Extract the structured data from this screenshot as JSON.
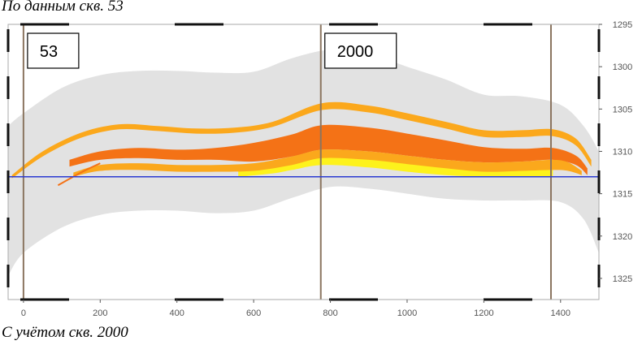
{
  "captions": {
    "top": "По данным скв. 53",
    "bottom": "С учётом скв. 2000"
  },
  "chart_data": {
    "type": "area",
    "xlabel": "",
    "ylabel": "",
    "xlim": [
      -40,
      1500
    ],
    "ylim": [
      1295,
      1327.5
    ],
    "y_inverted": true,
    "y_axis_side": "right",
    "x_ticks": [
      0,
      200,
      400,
      600,
      800,
      1000,
      1200,
      1400
    ],
    "y_ticks": [
      1295,
      1300,
      1305,
      1310,
      1315,
      1320,
      1325
    ],
    "wells": [
      {
        "name": "53",
        "x": 0
      },
      {
        "name": "2000",
        "x": 775
      },
      {
        "name": "",
        "x": 1375
      }
    ],
    "horizontal_line": {
      "y": 1313,
      "color": "#2b3bd1"
    },
    "colors": {
      "envelope": "#e2e2e2",
      "orange_dark": "#f47216",
      "orange_light": "#fba81c",
      "yellow": "#fdf21c",
      "well_line": "#8b7560",
      "frame": "#aaaaaa"
    },
    "series": [
      {
        "key": "envelope_top",
        "x": [
          -40,
          0,
          100,
          200,
          300,
          400,
          500,
          600,
          700,
          800,
          900,
          1000,
          1100,
          1200,
          1300,
          1400,
          1460,
          1500
        ],
        "y": [
          1307,
          1305.5,
          1302.5,
          1301,
          1300.5,
          1300.5,
          1300.7,
          1300.6,
          1299,
          1298,
          1298.5,
          1300,
          1301.5,
          1303.3,
          1303.5,
          1304.5,
          1307,
          1310
        ]
      },
      {
        "key": "envelope_bottom",
        "x": [
          -40,
          0,
          100,
          200,
          300,
          400,
          500,
          600,
          700,
          800,
          900,
          1000,
          1100,
          1200,
          1300,
          1400,
          1460,
          1500
        ],
        "y": [
          1324.7,
          1322,
          1319,
          1317.5,
          1317,
          1317,
          1317.3,
          1317,
          1315.5,
          1314.2,
          1314.4,
          1315,
          1315.6,
          1315.8,
          1315.8,
          1316,
          1318,
          1322
        ]
      },
      {
        "key": "layer1_top",
        "x": [
          -30,
          50,
          150,
          250,
          350,
          450,
          550,
          650,
          780,
          900,
          1000,
          1100,
          1200,
          1300,
          1380,
          1440,
          1480
        ],
        "y": [
          1312.8,
          1310,
          1307.8,
          1306.8,
          1307,
          1307.3,
          1307.2,
          1306.5,
          1304.3,
          1304.6,
          1305.5,
          1306.5,
          1307.5,
          1307.5,
          1307.4,
          1308.5,
          1311
        ]
      },
      {
        "key": "layer1_bottom",
        "x": [
          -30,
          50,
          150,
          250,
          350,
          450,
          550,
          650,
          780,
          900,
          1000,
          1100,
          1200,
          1300,
          1380,
          1440,
          1480
        ],
        "y": [
          1313.2,
          1310.6,
          1308.4,
          1307.4,
          1307.6,
          1307.9,
          1307.8,
          1307.1,
          1305.1,
          1305.4,
          1306.3,
          1307.3,
          1308.3,
          1308.3,
          1308.2,
          1309.3,
          1311.8
        ]
      },
      {
        "key": "layer2_top",
        "x": [
          120,
          200,
          300,
          400,
          500,
          600,
          700,
          780,
          900,
          1000,
          1100,
          1200,
          1300,
          1380,
          1440,
          1470
        ],
        "y": [
          1311,
          1310,
          1309.6,
          1309.8,
          1309.6,
          1309,
          1308,
          1306.9,
          1307.2,
          1307.9,
          1308.7,
          1309.5,
          1309.7,
          1309.6,
          1310.5,
          1312
        ]
      },
      {
        "key": "layer2_bottom",
        "x": [
          120,
          200,
          300,
          400,
          500,
          600,
          700,
          780,
          900,
          1000,
          1100,
          1200,
          1300,
          1380,
          1440,
          1470
        ],
        "y": [
          1311.8,
          1311,
          1310.8,
          1311,
          1311,
          1311.2,
          1310.6,
          1309.8,
          1310,
          1310.5,
          1311,
          1311.3,
          1311.2,
          1311,
          1311.6,
          1312.8
        ]
      },
      {
        "key": "layer3_top",
        "x": [
          130,
          200,
          300,
          400,
          500,
          600,
          700,
          780,
          900,
          1000,
          1100,
          1200,
          1300,
          1380,
          1420,
          1455
        ],
        "y": [
          1312.5,
          1311.6,
          1311.4,
          1311.6,
          1311.6,
          1311.4,
          1310.6,
          1309.8,
          1310,
          1310.5,
          1311,
          1311.3,
          1311.2,
          1311,
          1311.3,
          1312.3
        ]
      },
      {
        "key": "layer3_bottom",
        "x": [
          130,
          200,
          300,
          400,
          500,
          600,
          700,
          780,
          900,
          1000,
          1100,
          1200,
          1300,
          1380,
          1420,
          1455
        ],
        "y": [
          1313,
          1312.3,
          1312.2,
          1312.4,
          1312.4,
          1312.3,
          1311.6,
          1310.8,
          1311,
          1311.5,
          1312,
          1312.4,
          1312.3,
          1312.2,
          1312.3,
          1312.8
        ]
      },
      {
        "key": "yellow_top",
        "x": [
          560,
          650,
          700,
          780,
          900,
          1000,
          1100,
          1200,
          1300,
          1380
        ],
        "y": [
          1312.2,
          1311.6,
          1311.2,
          1310.4,
          1310.8,
          1311.3,
          1311.8,
          1312.2,
          1312.2,
          1312.2
        ]
      },
      {
        "key": "yellow_bottom",
        "x": [
          560,
          650,
          700,
          780,
          900,
          1000,
          1100,
          1200,
          1300,
          1380
        ],
        "y": [
          1313,
          1312.6,
          1312.2,
          1311.6,
          1311.9,
          1312.4,
          1312.8,
          1313,
          1313,
          1313
        ]
      },
      {
        "key": "thin_lower_line",
        "x": [
          90,
          150,
          200
        ],
        "y": [
          1314,
          1312.5,
          1311.4
        ]
      }
    ]
  }
}
